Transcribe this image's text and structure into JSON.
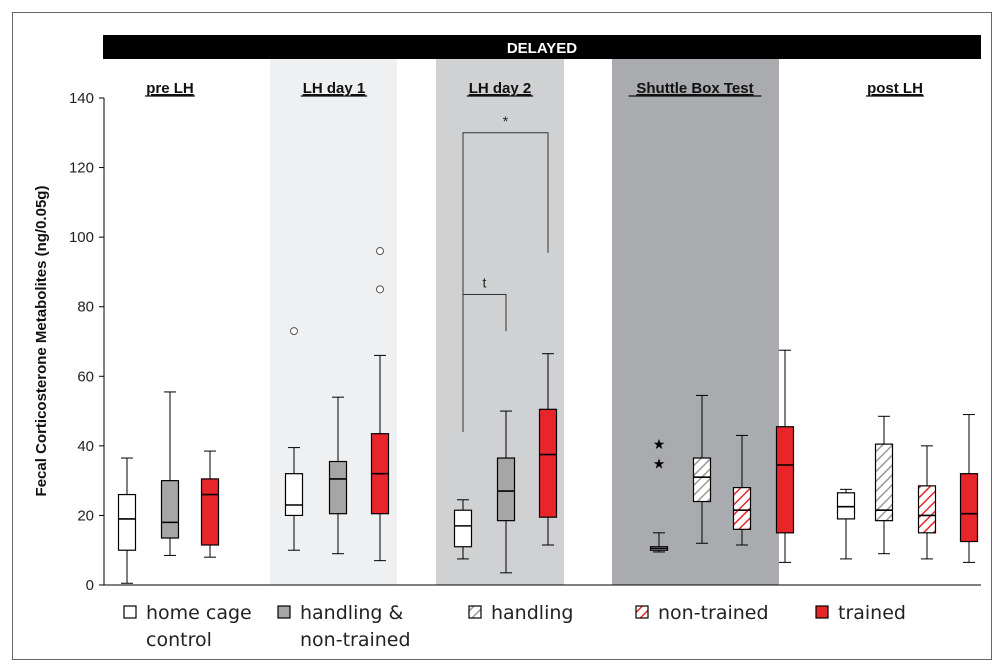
{
  "chart_data": {
    "type": "box",
    "title": "DELAYED",
    "ylabel": "Fecal Corticosterone Metabolites (ng/0.05g)",
    "ylim": [
      0,
      140
    ],
    "yticks": [
      "0",
      "20",
      "40",
      "60",
      "80",
      "100",
      "120",
      "140"
    ],
    "phases": [
      "pre LH",
      "LH day 1",
      "LH day 2",
      "Shuttle Box Test",
      "post LH"
    ],
    "legend": [
      {
        "key": "home",
        "label_lines": [
          "home cage",
          "control"
        ]
      },
      {
        "key": "handnt",
        "label_lines": [
          "handling &",
          "non-trained"
        ]
      },
      {
        "key": "handling",
        "label_lines": [
          "handling"
        ]
      },
      {
        "key": "nontrained",
        "label_lines": [
          "non-trained"
        ]
      },
      {
        "key": "trained",
        "label_lines": [
          "trained"
        ]
      }
    ],
    "boxes": [
      {
        "phase": "pre LH",
        "group": "home",
        "min": 0.5,
        "q1": 10,
        "median": 19,
        "q3": 26,
        "max": 36.5,
        "outliers": [],
        "stars": []
      },
      {
        "phase": "pre LH",
        "group": "handnt",
        "min": 8.5,
        "q1": 13.5,
        "median": 18,
        "q3": 30,
        "max": 55.5,
        "outliers": [],
        "stars": []
      },
      {
        "phase": "pre LH",
        "group": "trained",
        "min": 8,
        "q1": 11.5,
        "median": 26,
        "q3": 30.5,
        "max": 38.5,
        "outliers": [],
        "stars": []
      },
      {
        "phase": "LH day 1",
        "group": "home",
        "min": 10,
        "q1": 20,
        "median": 23,
        "q3": 32,
        "max": 39.5,
        "outliers": [
          73
        ],
        "stars": []
      },
      {
        "phase": "LH day 1",
        "group": "handnt",
        "min": 9,
        "q1": 20.5,
        "median": 30.5,
        "q3": 35.5,
        "max": 54,
        "outliers": [],
        "stars": []
      },
      {
        "phase": "LH day 1",
        "group": "trained",
        "min": 7,
        "q1": 20.5,
        "median": 32,
        "q3": 43.5,
        "max": 66,
        "outliers": [
          85,
          96
        ],
        "stars": []
      },
      {
        "phase": "LH day 2",
        "group": "home",
        "min": 7.5,
        "q1": 11,
        "median": 17,
        "q3": 21.5,
        "max": 24.5,
        "outliers": [],
        "stars": []
      },
      {
        "phase": "LH day 2",
        "group": "handnt",
        "min": 3.5,
        "q1": 18.5,
        "median": 27,
        "q3": 36.5,
        "max": 50,
        "outliers": [],
        "stars": []
      },
      {
        "phase": "LH day 2",
        "group": "trained",
        "min": 11.5,
        "q1": 19.5,
        "median": 37.5,
        "q3": 50.5,
        "max": 66.5,
        "outliers": [],
        "stars": []
      },
      {
        "phase": "Shuttle Box Test",
        "group": "home",
        "min": 9.5,
        "q1": 10,
        "median": 10.5,
        "q3": 11,
        "max": 15,
        "outliers": [],
        "stars": [
          35,
          40.5
        ]
      },
      {
        "phase": "Shuttle Box Test",
        "group": "handling",
        "min": 12,
        "q1": 24,
        "median": 31,
        "q3": 36.5,
        "max": 54.5,
        "outliers": [],
        "stars": []
      },
      {
        "phase": "Shuttle Box Test",
        "group": "nontrained",
        "min": 11.5,
        "q1": 16,
        "median": 21.5,
        "q3": 28,
        "max": 43,
        "outliers": [],
        "stars": []
      },
      {
        "phase": "Shuttle Box Test",
        "group": "trained",
        "min": 6.5,
        "q1": 15,
        "median": 34.5,
        "q3": 45.5,
        "max": 67.5,
        "outliers": [],
        "stars": []
      },
      {
        "phase": "post LH",
        "group": "home",
        "min": 7.5,
        "q1": 19,
        "median": 22.5,
        "q3": 26.5,
        "max": 27.5,
        "outliers": [],
        "stars": []
      },
      {
        "phase": "post LH",
        "group": "handling",
        "min": 9,
        "q1": 18.5,
        "median": 21.5,
        "q3": 40.5,
        "max": 48.5,
        "outliers": [],
        "stars": []
      },
      {
        "phase": "post LH",
        "group": "nontrained",
        "min": 7.5,
        "q1": 15,
        "median": 20,
        "q3": 28.5,
        "max": 40,
        "outliers": [],
        "stars": []
      },
      {
        "phase": "post LH",
        "group": "trained",
        "min": 6.5,
        "q1": 12.5,
        "median": 20.5,
        "q3": 32,
        "max": 49,
        "outliers": [],
        "stars": []
      }
    ],
    "significance": [
      {
        "label": "*",
        "level": 130,
        "left_end": 44,
        "right_end": 95.5
      },
      {
        "label": "t",
        "level": 83.5,
        "left_end": 44,
        "right_end": 73
      }
    ],
    "colors": {
      "red": "#e8252a",
      "gray": "#a6a6a6",
      "banner": "#000000",
      "panel1": "#eef0f2",
      "panel2": "#d0d1d3",
      "panel3": "#a9abae"
    }
  }
}
